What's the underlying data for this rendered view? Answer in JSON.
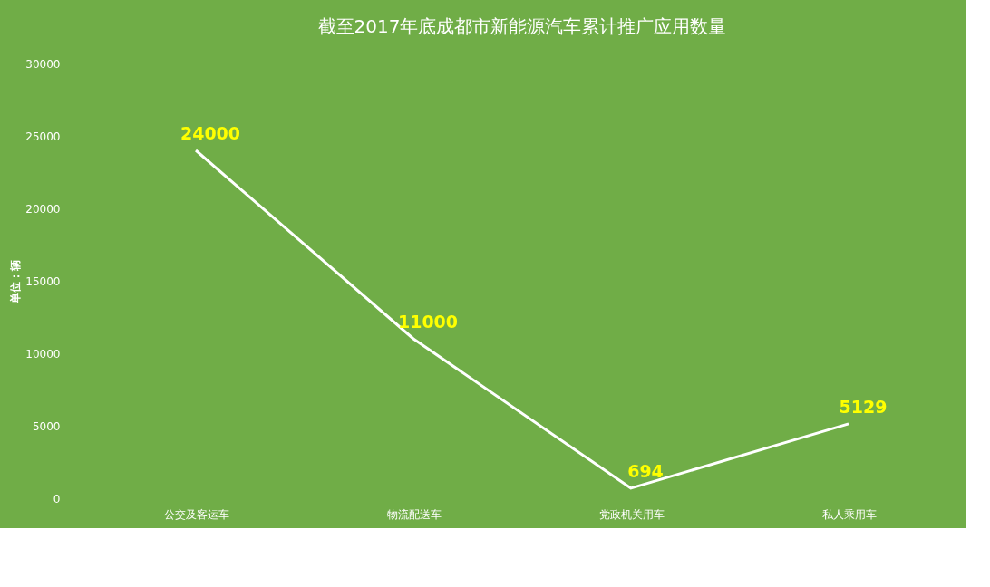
{
  "chart_data": {
    "type": "line",
    "title": "截至2017年底成都市新能源汽车累计推广应用数量",
    "ylabel": "单位：辆",
    "categories": [
      "公交及客运车",
      "物流配送车",
      "党政机关用车",
      "私人乘用车"
    ],
    "series": [
      {
        "color": "#ffffff",
        "values": [
          24000,
          11000,
          694,
          5129
        ]
      }
    ],
    "ylim": [
      0,
      30000
    ],
    "yticks": [
      0,
      5000,
      10000,
      15000,
      20000,
      25000,
      30000
    ],
    "grid": false,
    "marker": "none",
    "line_style": "solid",
    "data_labels": true
  }
}
